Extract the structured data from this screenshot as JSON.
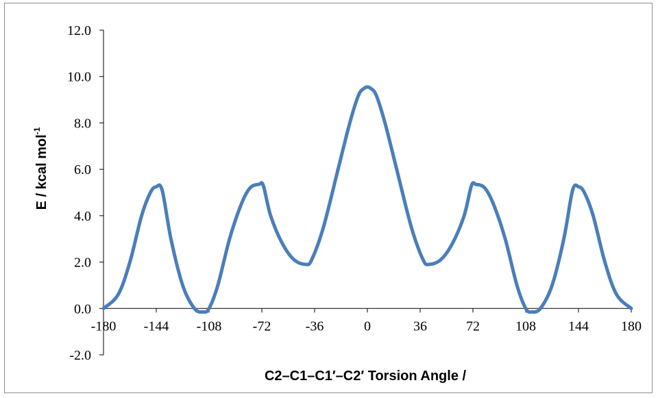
{
  "chart_data": {
    "type": "line",
    "title": "",
    "xlabel": "C2–C1–C1′–C2′ Torsion Angle /",
    "ylabel_main": "E / kcal mol",
    "ylabel_superscript": "-1",
    "xlim": [
      -180,
      180
    ],
    "ylim": [
      -2,
      12
    ],
    "xticks": [
      -180,
      -144,
      -108,
      -72,
      -36,
      0,
      36,
      72,
      108,
      144,
      180
    ],
    "xtick_labels": [
      "-180",
      "-144",
      "-108",
      "-72",
      "-36",
      "0",
      "36",
      "72",
      "108",
      "144",
      "180"
    ],
    "yticks": [
      -2,
      0,
      2,
      4,
      6,
      8,
      10,
      12
    ],
    "ytick_labels": [
      "-2.0",
      "0.0",
      "2.0",
      "4.0",
      "6.0",
      "8.0",
      "10.0",
      "12.0"
    ],
    "grid": false,
    "legend": "none",
    "series": [
      {
        "color": "#4a7ebb",
        "x": [
          -180,
          -170,
          -162,
          -154,
          -148,
          -144,
          -140,
          -134,
          -126,
          -118,
          -112,
          -108,
          -102,
          -94,
          -86,
          -80,
          -74,
          -71,
          -66,
          -58,
          -50,
          -42,
          -38,
          -30,
          -20,
          -12,
          -6,
          -2,
          0,
          2,
          6,
          12,
          20,
          30,
          38,
          42,
          50,
          58,
          66,
          71,
          74,
          80,
          86,
          94,
          102,
          108,
          112,
          118,
          126,
          134,
          140,
          144,
          148,
          154,
          162,
          170,
          180
        ],
        "y": [
          0.0,
          0.6,
          2.0,
          4.0,
          5.0,
          5.25,
          5.1,
          3.0,
          1.0,
          0.0,
          -0.15,
          0.0,
          1.0,
          3.0,
          4.5,
          5.2,
          5.35,
          5.3,
          4.0,
          2.8,
          2.1,
          1.9,
          2.1,
          3.5,
          6.0,
          8.0,
          9.2,
          9.5,
          9.55,
          9.5,
          9.2,
          8.0,
          6.0,
          3.5,
          2.1,
          1.9,
          2.1,
          2.8,
          4.0,
          5.3,
          5.35,
          5.2,
          4.5,
          3.0,
          1.0,
          0.0,
          -0.15,
          0.0,
          1.0,
          3.0,
          5.1,
          5.25,
          5.0,
          4.0,
          2.0,
          0.6,
          0.0
        ]
      }
    ]
  }
}
